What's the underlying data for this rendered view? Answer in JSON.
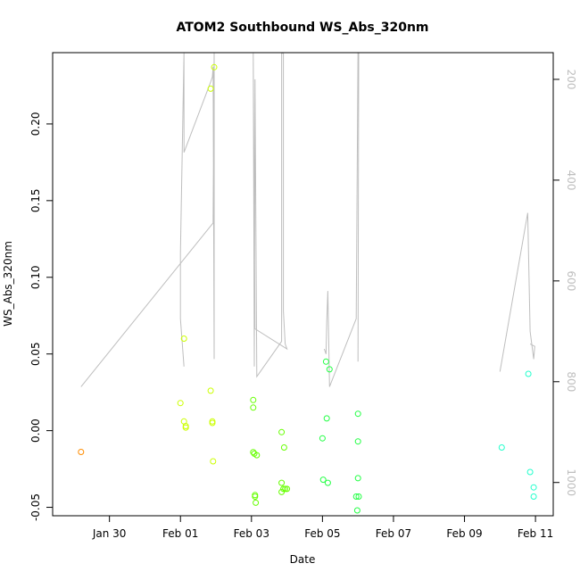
{
  "chart_data": {
    "type": "scatter",
    "title": "ATOM2 Southbound WS_Abs_320nm",
    "xlabel": "Date",
    "ylabel": "WS_Abs_320nm",
    "x_ticks": [
      "Jan 30",
      "Feb 01",
      "Feb 03",
      "Feb 05",
      "Feb 07",
      "Feb 09",
      "Feb 11"
    ],
    "x_tick_days": [
      29,
      31,
      33,
      35,
      37,
      39,
      41
    ],
    "xlim": [
      27.4,
      41.5
    ],
    "ylim": [
      -0.0555,
      0.2465
    ],
    "y_ticks": [
      -0.05,
      0.0,
      0.05,
      0.1,
      0.15,
      0.2
    ],
    "y_tick_labels": [
      "-0.05",
      "0.00",
      "0.05",
      "0.10",
      "0.15",
      "0.20"
    ],
    "right_axis": {
      "ticks": [
        200,
        400,
        600,
        800,
        1000
      ],
      "tick_labels": [
        "200",
        "400",
        "600",
        "800",
        "1000"
      ],
      "lim": [
        1066,
        147
      ],
      "color": "#bebebe"
    },
    "series": [
      {
        "color": "#ff8c00",
        "x": [
          28.2
        ],
        "y": [
          -0.0139
        ]
      },
      {
        "color": "#ccff00",
        "x": [
          31.0,
          31.1,
          31.1,
          31.15,
          31.15,
          31.85,
          31.85,
          31.9,
          31.9,
          31.92,
          31.95
        ],
        "y": [
          0.018,
          0.06,
          0.006,
          0.003,
          0.002,
          0.223,
          0.026,
          0.005,
          0.006,
          -0.02,
          0.237
        ]
      },
      {
        "color": "#66ff00",
        "x": [
          33.05,
          33.05,
          33.05,
          33.08,
          33.1,
          33.1,
          33.12,
          33.15,
          33.85,
          33.85,
          33.85,
          33.9,
          33.92,
          33.95,
          34.0
        ],
        "y": [
          0.02,
          0.015,
          -0.014,
          -0.015,
          -0.043,
          -0.042,
          -0.047,
          -0.016,
          -0.001,
          -0.034,
          -0.04,
          -0.038,
          -0.011,
          -0.038,
          -0.038
        ]
      },
      {
        "color": "#22ff44",
        "x": [
          35.0,
          35.02,
          35.1,
          35.12,
          35.15,
          35.2,
          35.95,
          35.98,
          36.0,
          36.0,
          36.0,
          36.02
        ],
        "y": [
          -0.005,
          -0.032,
          0.045,
          0.008,
          -0.034,
          0.04,
          -0.043,
          -0.052,
          0.011,
          -0.007,
          -0.031,
          -0.043
        ]
      },
      {
        "color": "#22ffcc",
        "x": [
          40.05,
          40.8,
          40.85,
          40.95,
          40.95
        ],
        "y": [
          -0.011,
          0.037,
          -0.027,
          -0.037,
          -0.043
        ]
      }
    ],
    "line_series": {
      "color": "#bebebe",
      "segments": [
        [
          [
            28.2,
            810
          ],
          [
            31.92,
            485
          ],
          [
            31.95,
            148
          ],
          [
            31.95,
            755
          ],
          [
            31.92,
            175
          ],
          [
            31.9,
            195
          ],
          [
            31.85,
            205
          ],
          [
            31.1,
            345
          ],
          [
            31.1,
            148
          ],
          [
            31.0,
            545
          ],
          [
            31.0,
            675
          ],
          [
            31.1,
            770
          ]
        ],
        [
          [
            33.05,
            148
          ],
          [
            33.08,
            770
          ],
          [
            33.1,
            200
          ],
          [
            33.15,
            790
          ],
          [
            33.85,
            720
          ],
          [
            33.85,
            148
          ],
          [
            33.9,
            148
          ],
          [
            33.9,
            660
          ],
          [
            33.95,
            725
          ],
          [
            34.0,
            735
          ],
          [
            33.1,
            695
          ],
          [
            33.05,
            148
          ]
        ],
        [
          [
            35.05,
            735
          ],
          [
            35.1,
            745
          ],
          [
            35.12,
            680
          ],
          [
            35.15,
            620
          ],
          [
            35.2,
            810
          ],
          [
            35.95,
            675
          ],
          [
            36.0,
            148
          ],
          [
            36.02,
            148
          ],
          [
            36.0,
            760
          ]
        ],
        [
          [
            40.0,
            780
          ],
          [
            40.78,
            465
          ],
          [
            40.85,
            700
          ],
          [
            40.95,
            755
          ],
          [
            40.98,
            730
          ],
          [
            40.85,
            725
          ]
        ]
      ]
    }
  }
}
